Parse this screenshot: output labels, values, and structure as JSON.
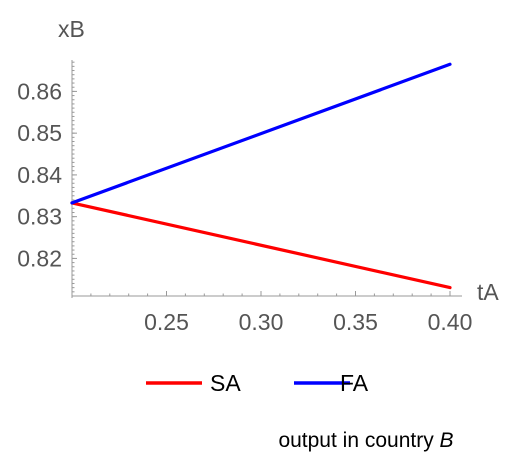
{
  "chart_data": {
    "type": "line",
    "xlabel": "tA",
    "ylabel": "xB",
    "xlim": [
      0.2,
      0.4
    ],
    "ylim": [
      0.811,
      0.868
    ],
    "x_ticks": [
      "0.25",
      "0.30",
      "0.35",
      "0.40"
    ],
    "y_ticks": [
      "0.82",
      "0.83",
      "0.84",
      "0.85",
      "0.86"
    ],
    "grid": false,
    "legend_position": "bottom",
    "series": [
      {
        "name": "SA",
        "color": "#ff0000",
        "x": [
          0.2,
          0.4
        ],
        "y": [
          0.8333,
          0.813
        ]
      },
      {
        "name": "FA",
        "color": "#0000ff",
        "x": [
          0.2,
          0.4
        ],
        "y": [
          0.8333,
          0.8665
        ]
      }
    ],
    "caption": {
      "prefix": "output in country ",
      "emph": "B"
    }
  }
}
